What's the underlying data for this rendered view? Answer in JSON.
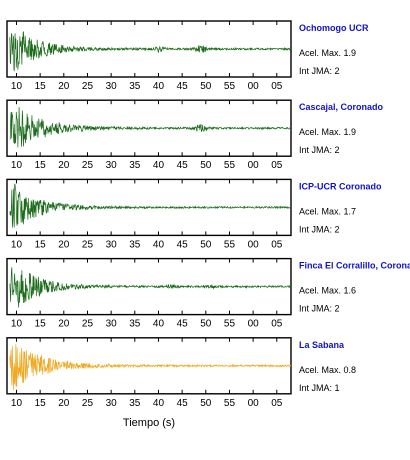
{
  "chart_data": {
    "type": "line",
    "x_axis": {
      "label": "Tiempo (s)",
      "tick_labels": [
        "10",
        "15",
        "20",
        "25",
        "30",
        "35",
        "40",
        "45",
        "50",
        "55",
        "00",
        "05"
      ]
    },
    "info_labels": {
      "pga_prefix": "Acel. Max.",
      "jma_prefix": "Int JMA:"
    },
    "series": [
      {
        "name": "Ochomogo UCR",
        "pga": "1.9",
        "jma": "2",
        "color": "#1a6b1a",
        "peak_time": 9.5,
        "duration_decay": 5,
        "bursts": [
          {
            "t": 40,
            "amp": 0.1
          },
          {
            "t": 49,
            "amp": 0.15
          }
        ]
      },
      {
        "name": "Cascajal, Coronado",
        "pga": "1.9",
        "jma": "2",
        "color": "#1a6b1a",
        "peak_time": 9.5,
        "duration_decay": 6,
        "bursts": [
          {
            "t": 49,
            "amp": 0.12
          }
        ]
      },
      {
        "name": "ICP-UCR Coronado",
        "pga": "1.7",
        "jma": "2",
        "color": "#1a6b1a",
        "peak_time": 9.5,
        "duration_decay": 5,
        "bursts": []
      },
      {
        "name": "Finca El Corralillo, Coronado",
        "pga": "1.6",
        "jma": "2",
        "color": "#1a6b1a",
        "peak_time": 9.5,
        "duration_decay": 5,
        "bursts": [
          {
            "t": 43,
            "amp": 0.06
          },
          {
            "t": 51,
            "amp": 0.05
          }
        ]
      },
      {
        "name": "La Sabana",
        "pga": "0.8",
        "jma": "1",
        "color": "#f0a820",
        "peak_time": 9.5,
        "duration_decay": 6,
        "bursts": []
      }
    ]
  }
}
